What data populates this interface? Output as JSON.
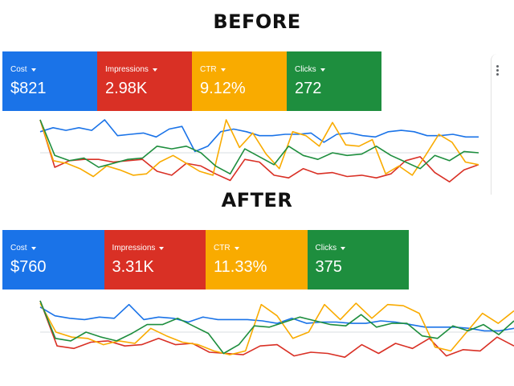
{
  "headings": {
    "before": "BEFORE",
    "after": "AFTER"
  },
  "colors": {
    "cost": "#1a73e8",
    "impressions": "#d93025",
    "ctr": "#f9ab00",
    "clicks": "#1e8e3e",
    "gridline": "#dadce0"
  },
  "icons": {
    "menu": "more-vert-icon",
    "dropdown": "caret-down-icon"
  },
  "before": {
    "scorecards": [
      {
        "metric": "Cost",
        "value": "$821"
      },
      {
        "metric": "Impressions",
        "value": "2.98K"
      },
      {
        "metric": "CTR",
        "value": "9.12%"
      },
      {
        "metric": "Clicks",
        "value": "272"
      }
    ]
  },
  "after": {
    "scorecards": [
      {
        "metric": "Cost",
        "value": "$760"
      },
      {
        "metric": "Impressions",
        "value": "3.31K"
      },
      {
        "metric": "CTR",
        "value": "11.33%"
      },
      {
        "metric": "Clicks",
        "value": "375"
      }
    ]
  },
  "chart_data": [
    {
      "type": "line",
      "panel": "before",
      "grid": true,
      "ylim": [
        0,
        100
      ],
      "series": [
        {
          "metric": "cost",
          "values": [
            82,
            88,
            84,
            88,
            84,
            100,
            76,
            78,
            80,
            74,
            86,
            90,
            52,
            60,
            82,
            86,
            82,
            76,
            76,
            78,
            78,
            80,
            66,
            78,
            80,
            76,
            74,
            82,
            84,
            82,
            76,
            76,
            78,
            74,
            74
          ]
        },
        {
          "metric": "impressions",
          "values": [
            100,
            28,
            38,
            40,
            40,
            36,
            38,
            40,
            22,
            16,
            34,
            30,
            18,
            8,
            40,
            36,
            16,
            12,
            26,
            18,
            20,
            14,
            16,
            12,
            18,
            38,
            44,
            20,
            6,
            24,
            32
          ]
        },
        {
          "metric": "ctr",
          "values": [
            100,
            38,
            34,
            26,
            14,
            30,
            24,
            16,
            18,
            36,
            46,
            34,
            22,
            16,
            100,
            58,
            80,
            48,
            26,
            82,
            76,
            60,
            96,
            62,
            60,
            70,
            18,
            30,
            16,
            46,
            78,
            66,
            36,
            32
          ]
        },
        {
          "metric": "clicks",
          "values": [
            100,
            46,
            38,
            42,
            28,
            34,
            40,
            42,
            60,
            56,
            60,
            50,
            30,
            18,
            56,
            44,
            32,
            60,
            46,
            40,
            50,
            46,
            48,
            60,
            46,
            36,
            26,
            46,
            38,
            52,
            50
          ]
        }
      ]
    },
    {
      "type": "line",
      "panel": "after",
      "grid": true,
      "ylim": [
        0,
        100
      ],
      "series": [
        {
          "metric": "cost",
          "values": [
            90,
            76,
            72,
            70,
            74,
            72,
            94,
            70,
            74,
            72,
            66,
            74,
            70,
            70,
            70,
            68,
            64,
            72,
            64,
            66,
            66,
            64,
            64,
            68,
            66,
            62,
            58,
            58,
            58,
            56,
            52,
            52,
            56
          ]
        },
        {
          "metric": "impressions",
          "values": [
            100,
            28,
            24,
            34,
            36,
            28,
            30,
            40,
            30,
            32,
            18,
            16,
            14,
            28,
            30,
            12,
            18,
            16,
            10,
            30,
            16,
            32,
            24,
            40,
            12,
            22,
            20,
            42,
            28
          ]
        },
        {
          "metric": "ctr",
          "values": [
            96,
            50,
            42,
            40,
            30,
            36,
            32,
            56,
            44,
            34,
            30,
            20,
            14,
            20,
            94,
            76,
            40,
            50,
            94,
            70,
            96,
            72,
            94,
            92,
            80,
            26,
            20,
            50,
            80,
            64,
            84
          ]
        },
        {
          "metric": "clicks",
          "values": [
            100,
            40,
            36,
            50,
            42,
            36,
            48,
            62,
            62,
            72,
            60,
            48,
            16,
            30,
            60,
            58,
            66,
            74,
            68,
            62,
            60,
            78,
            58,
            64,
            64,
            44,
            40,
            60,
            52,
            62,
            46,
            68
          ]
        }
      ]
    }
  ]
}
